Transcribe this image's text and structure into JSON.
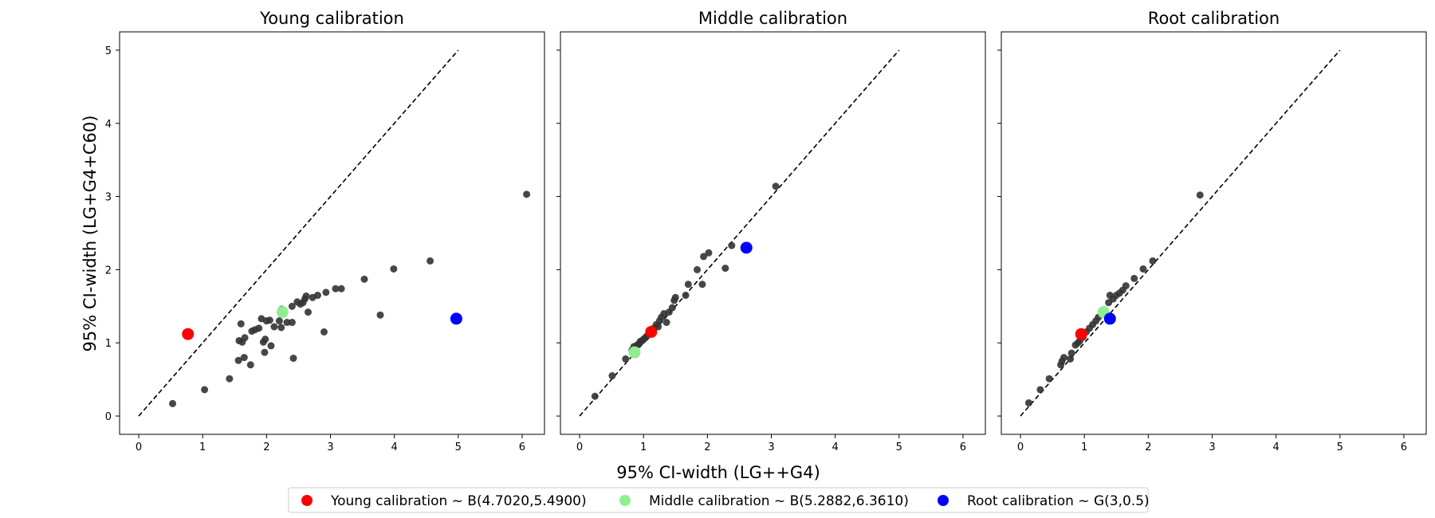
{
  "figure": {
    "xlabel": "95% CI-width (LG++G4)",
    "ylabel": "95% CI-width (LG+G4+C60)"
  },
  "legend": {
    "items": [
      {
        "label": "Young calibration ~ B(4.7020,5.4900)",
        "color": "#ff0000"
      },
      {
        "label": "Middle calibration ~ B(5.2882,6.3610)",
        "color": "#90ee90"
      },
      {
        "label": "Root calibration ~ G(3,0.5)",
        "color": "#0000ff"
      }
    ]
  },
  "colors": {
    "points": "#333333",
    "young": "#ff0000",
    "middle": "#90ee90",
    "root": "#0000ff"
  },
  "chart_data": [
    {
      "type": "scatter",
      "title": "Young calibration",
      "xlim": [
        -0.3,
        6.35
      ],
      "ylim": [
        -0.25,
        5.25
      ],
      "xticks": [
        "0",
        "1",
        "2",
        "3",
        "4",
        "5",
        "6"
      ],
      "yticks": [
        "0",
        "1",
        "2",
        "3",
        "4",
        "5"
      ],
      "diagonal": [
        [
          0,
          0
        ],
        [
          5,
          5
        ]
      ],
      "points": [
        [
          0.53,
          0.17
        ],
        [
          1.03,
          0.36
        ],
        [
          1.42,
          0.51
        ],
        [
          1.56,
          0.76
        ],
        [
          1.65,
          0.8
        ],
        [
          1.75,
          0.7
        ],
        [
          1.97,
          0.87
        ],
        [
          2.07,
          0.96
        ],
        [
          2.42,
          0.79
        ],
        [
          1.57,
          1.03
        ],
        [
          1.62,
          1.01
        ],
        [
          1.66,
          1.07
        ],
        [
          1.6,
          1.26
        ],
        [
          1.77,
          1.16
        ],
        [
          1.82,
          1.18
        ],
        [
          1.88,
          1.2
        ],
        [
          1.92,
          1.33
        ],
        [
          1.95,
          1.01
        ],
        [
          1.98,
          1.05
        ],
        [
          2.0,
          1.3
        ],
        [
          2.05,
          1.31
        ],
        [
          2.12,
          1.22
        ],
        [
          2.2,
          1.3
        ],
        [
          2.23,
          1.21
        ],
        [
          2.24,
          1.46
        ],
        [
          2.27,
          1.43
        ],
        [
          2.32,
          1.28
        ],
        [
          2.4,
          1.28
        ],
        [
          2.4,
          1.5
        ],
        [
          2.48,
          1.56
        ],
        [
          2.53,
          1.53
        ],
        [
          2.57,
          1.55
        ],
        [
          2.6,
          1.6
        ],
        [
          2.62,
          1.64
        ],
        [
          2.65,
          1.42
        ],
        [
          2.72,
          1.62
        ],
        [
          2.8,
          1.65
        ],
        [
          2.9,
          1.15
        ],
        [
          2.93,
          1.69
        ],
        [
          3.08,
          1.74
        ],
        [
          3.17,
          1.74
        ],
        [
          3.53,
          1.87
        ],
        [
          3.78,
          1.38
        ],
        [
          3.99,
          2.01
        ],
        [
          4.56,
          2.12
        ],
        [
          6.07,
          3.03
        ]
      ],
      "young": [
        0.77,
        1.12
      ],
      "middle": [
        2.25,
        1.42
      ],
      "root": [
        4.97,
        1.33
      ]
    },
    {
      "type": "scatter",
      "title": "Middle calibration",
      "xlim": [
        -0.3,
        6.35
      ],
      "ylim": [
        -0.25,
        5.25
      ],
      "xticks": [
        "0",
        "1",
        "2",
        "3",
        "4",
        "5",
        "6"
      ],
      "yticks": [],
      "diagonal": [
        [
          0,
          0
        ],
        [
          5,
          5
        ]
      ],
      "points": [
        [
          0.24,
          0.27
        ],
        [
          0.51,
          0.55
        ],
        [
          0.72,
          0.78
        ],
        [
          0.82,
          0.9
        ],
        [
          0.85,
          0.95
        ],
        [
          0.9,
          0.97
        ],
        [
          0.93,
          0.99
        ],
        [
          0.95,
          1.02
        ],
        [
          0.98,
          1.03
        ],
        [
          1.0,
          1.05
        ],
        [
          1.03,
          1.07
        ],
        [
          1.05,
          1.09
        ],
        [
          1.08,
          1.12
        ],
        [
          1.12,
          1.15
        ],
        [
          1.16,
          1.2
        ],
        [
          1.2,
          1.25
        ],
        [
          1.23,
          1.22
        ],
        [
          1.25,
          1.3
        ],
        [
          1.28,
          1.35
        ],
        [
          1.32,
          1.4
        ],
        [
          1.36,
          1.28
        ],
        [
          1.4,
          1.42
        ],
        [
          1.45,
          1.48
        ],
        [
          1.48,
          1.58
        ],
        [
          1.5,
          1.62
        ],
        [
          1.66,
          1.65
        ],
        [
          1.7,
          1.8
        ],
        [
          1.84,
          2.0
        ],
        [
          1.92,
          1.8
        ],
        [
          1.94,
          2.18
        ],
        [
          2.02,
          2.23
        ],
        [
          2.28,
          2.02
        ],
        [
          2.38,
          2.33
        ],
        [
          3.07,
          3.14
        ]
      ],
      "young": [
        1.12,
        1.15
      ],
      "middle": [
        0.86,
        0.87
      ],
      "root": [
        2.61,
        2.3
      ]
    },
    {
      "type": "scatter",
      "title": "Root calibration",
      "xlim": [
        -0.3,
        6.35
      ],
      "ylim": [
        -0.25,
        5.25
      ],
      "xticks": [
        "0",
        "1",
        "2",
        "3",
        "4",
        "5",
        "6"
      ],
      "yticks": [],
      "diagonal": [
        [
          0,
          0
        ],
        [
          5,
          5
        ]
      ],
      "points": [
        [
          0.13,
          0.18
        ],
        [
          0.31,
          0.36
        ],
        [
          0.45,
          0.51
        ],
        [
          0.63,
          0.7
        ],
        [
          0.65,
          0.75
        ],
        [
          0.68,
          0.8
        ],
        [
          0.78,
          0.78
        ],
        [
          0.8,
          0.86
        ],
        [
          0.86,
          0.97
        ],
        [
          0.9,
          1.0
        ],
        [
          0.93,
          1.03
        ],
        [
          0.98,
          1.08
        ],
        [
          1.03,
          1.15
        ],
        [
          1.08,
          1.2
        ],
        [
          1.13,
          1.25
        ],
        [
          1.18,
          1.3
        ],
        [
          1.22,
          1.35
        ],
        [
          1.27,
          1.4
        ],
        [
          1.32,
          1.45
        ],
        [
          1.38,
          1.55
        ],
        [
          1.4,
          1.65
        ],
        [
          1.45,
          1.6
        ],
        [
          1.5,
          1.65
        ],
        [
          1.55,
          1.68
        ],
        [
          1.6,
          1.72
        ],
        [
          1.65,
          1.78
        ],
        [
          1.78,
          1.88
        ],
        [
          1.92,
          2.01
        ],
        [
          2.07,
          2.12
        ],
        [
          2.81,
          3.02
        ]
      ],
      "young": [
        0.95,
        1.12
      ],
      "middle": [
        1.3,
        1.42
      ],
      "root": [
        1.4,
        1.33
      ]
    }
  ]
}
